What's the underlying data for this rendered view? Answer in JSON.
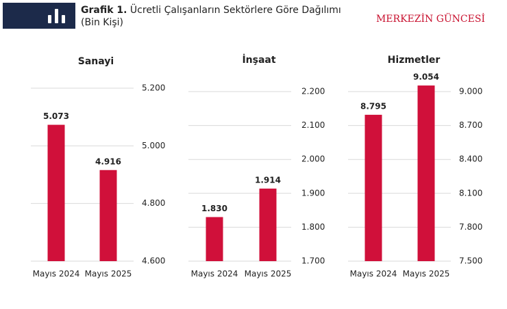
{
  "header": {
    "label": "Grafik 1.",
    "title": "Ücretli Çalışanların Sektörlere Göre Dağılımı",
    "unit": "(Bin Kişi)",
    "brand": "MERKEZİN GÜNCESİ"
  },
  "chart_data": [
    {
      "type": "bar",
      "title": "Sanayi",
      "categories": [
        "Mayıs 2024",
        "Mayıs 2025"
      ],
      "values": [
        5073,
        4916
      ],
      "value_labels": [
        "5.073",
        "4.916"
      ],
      "color": "#d0103a",
      "ylim": [
        4600,
        5200
      ],
      "yticks": [
        {
          "value": 4600,
          "label": "4.600"
        },
        {
          "value": 4800,
          "label": "4.800"
        },
        {
          "value": 5000,
          "label": "5.000"
        },
        {
          "value": 5200,
          "label": "5.200"
        }
      ],
      "grid": true
    },
    {
      "type": "bar",
      "title": "İnşaat",
      "categories": [
        "Mayıs 2024",
        "Mayıs 2025"
      ],
      "values": [
        1830,
        1914
      ],
      "value_labels": [
        "1.830",
        "1.914"
      ],
      "color": "#d0103a",
      "ylim": [
        1700,
        2200
      ],
      "yticks": [
        {
          "value": 1700,
          "label": "1.700"
        },
        {
          "value": 1800,
          "label": "1.800"
        },
        {
          "value": 1900,
          "label": "1.900"
        },
        {
          "value": 2000,
          "label": "2.000"
        },
        {
          "value": 2100,
          "label": "2.100"
        },
        {
          "value": 2200,
          "label": "2.200"
        }
      ],
      "grid": true
    },
    {
      "type": "bar",
      "title": "Hizmetler",
      "categories": [
        "Mayıs 2024",
        "Mayıs 2025"
      ],
      "values": [
        8795,
        9054
      ],
      "value_labels": [
        "8.795",
        "9.054"
      ],
      "color": "#d0103a",
      "ylim": [
        7500,
        9000
      ],
      "yticks": [
        {
          "value": 7500,
          "label": "7.500"
        },
        {
          "value": 7800,
          "label": "7.800"
        },
        {
          "value": 8100,
          "label": "8.100"
        },
        {
          "value": 8400,
          "label": "8.400"
        },
        {
          "value": 8700,
          "label": "8.700"
        },
        {
          "value": 9000,
          "label": "9.000"
        }
      ],
      "grid": true
    }
  ]
}
